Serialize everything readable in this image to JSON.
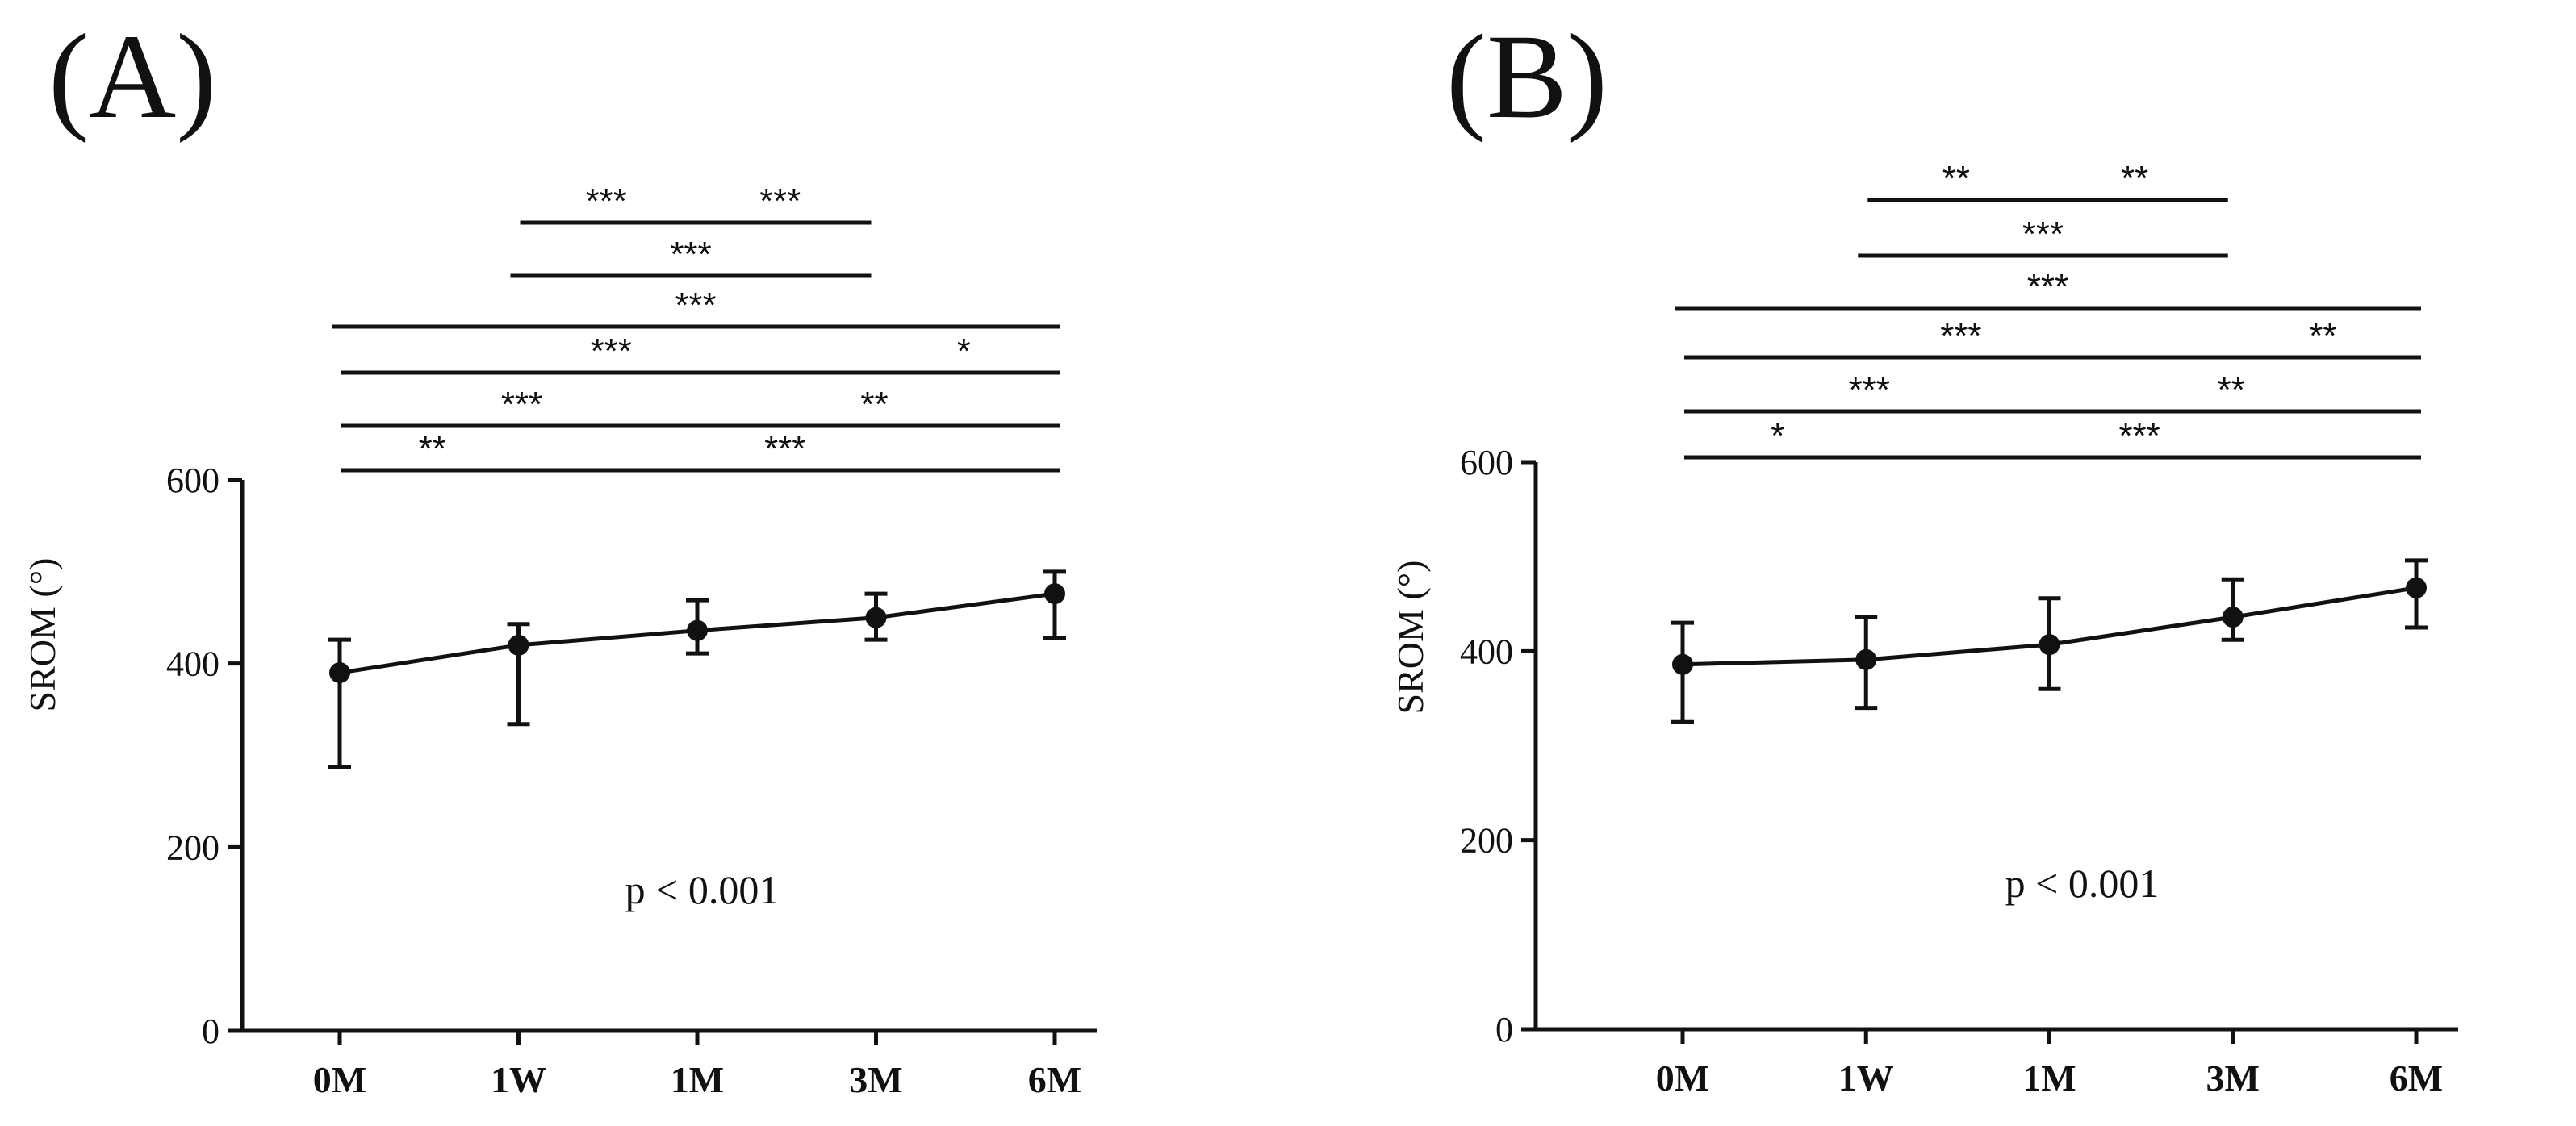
{
  "chart_data": [
    {
      "panel": "(A)",
      "type": "line",
      "categories": [
        "0M",
        "1W",
        "1M",
        "3M",
        "6M"
      ],
      "values": [
        390,
        420,
        436,
        450,
        476
      ],
      "error_low": [
        287,
        334,
        411,
        426,
        428
      ],
      "error_high": [
        426,
        443,
        469,
        476,
        500
      ],
      "ylabel": "SROM (°)",
      "ylim": [
        0,
        600
      ],
      "yticks": [
        "0",
        "200",
        "400",
        "600"
      ],
      "annotation": "p < 0.001",
      "significance": [
        {
          "from": 0,
          "to": 1,
          "label": "**"
        },
        {
          "from": 1,
          "to": 4,
          "label": "***"
        },
        {
          "from": 0,
          "to": 2,
          "label": "***"
        },
        {
          "from": 2,
          "to": 4,
          "label": "**"
        },
        {
          "from": 0,
          "to": 3,
          "label": "***"
        },
        {
          "from": 3,
          "to": 4,
          "label": "*"
        },
        {
          "from": 0,
          "to": 4,
          "label": "***"
        },
        {
          "from": 1,
          "to": 3,
          "label": "***"
        },
        {
          "from": 1,
          "to": 2,
          "label": "***"
        },
        {
          "from": 2,
          "to": 3,
          "label": "***"
        }
      ]
    },
    {
      "panel": "(B)",
      "type": "line",
      "categories": [
        "0M",
        "1W",
        "1M",
        "3M",
        "6M"
      ],
      "values": [
        386,
        391,
        407,
        436,
        467
      ],
      "error_low": [
        325,
        340,
        360,
        412,
        425
      ],
      "error_high": [
        430,
        436,
        456,
        476,
        496
      ],
      "ylabel": "SROM (°)",
      "ylim": [
        0,
        600
      ],
      "yticks": [
        "0",
        "200",
        "400",
        "600"
      ],
      "annotation": "p < 0.001",
      "significance": [
        {
          "from": 0,
          "to": 1,
          "label": "*"
        },
        {
          "from": 1,
          "to": 4,
          "label": "***"
        },
        {
          "from": 0,
          "to": 2,
          "label": "***"
        },
        {
          "from": 2,
          "to": 4,
          "label": "**"
        },
        {
          "from": 0,
          "to": 3,
          "label": "***"
        },
        {
          "from": 3,
          "to": 4,
          "label": "**"
        },
        {
          "from": 0,
          "to": 4,
          "label": "***"
        },
        {
          "from": 1,
          "to": 3,
          "label": "***"
        },
        {
          "from": 1,
          "to": 2,
          "label": "**"
        },
        {
          "from": 2,
          "to": 3,
          "label": "**"
        }
      ]
    }
  ]
}
